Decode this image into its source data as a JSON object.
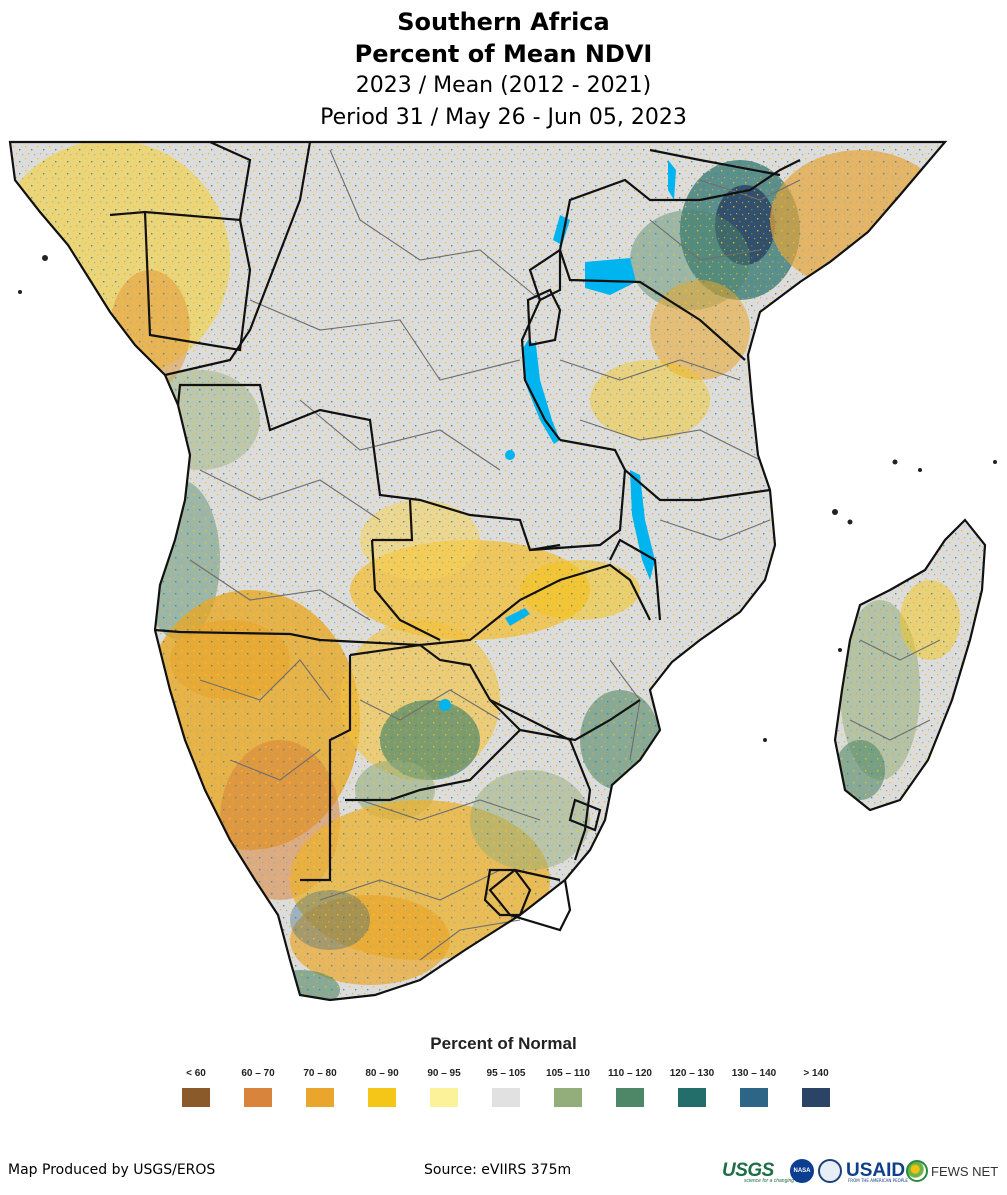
{
  "title": {
    "line1": "Southern Africa",
    "line2": "Percent of Mean NDVI",
    "line3": "2023 / Mean (2012 - 2021)",
    "line4": "Period 31 / May 26 - Jun 05, 2023"
  },
  "legend": {
    "title": "Percent of Normal",
    "classes": [
      {
        "label": "< 60",
        "color": "#8a5a2b"
      },
      {
        "label": "60 – 70",
        "color": "#d8843c"
      },
      {
        "label": "70 – 80",
        "color": "#eaa52c"
      },
      {
        "label": "80 – 90",
        "color": "#f5c518"
      },
      {
        "label": "90 – 95",
        "color": "#fbf29a"
      },
      {
        "label": "95 – 105",
        "color": "#e1e1e1"
      },
      {
        "label": "105 – 110",
        "color": "#94ae7b"
      },
      {
        "label": "110 – 120",
        "color": "#4e8768"
      },
      {
        "label": "120 – 130",
        "color": "#236d6a"
      },
      {
        "label": "130 – 140",
        "color": "#2c6585"
      },
      {
        "label": "> 140",
        "color": "#2b4466"
      }
    ]
  },
  "footer": {
    "produced_by": "Map Produced by USGS/EROS",
    "source": "Source: eVIIRS 375m"
  },
  "logos": {
    "usgs": "USGS",
    "usgs_tagline": "science for a changing world",
    "nasa": "NASA",
    "usaid": "USAID",
    "usaid_tagline": "FROM THE AMERICAN PEOPLE",
    "fewsnet": "FEWS NET"
  },
  "colors": {
    "water": "#00b4f0",
    "border_national": "#111111",
    "border_admin": "#6e6e6e",
    "land_base": "#dcdcdc"
  }
}
